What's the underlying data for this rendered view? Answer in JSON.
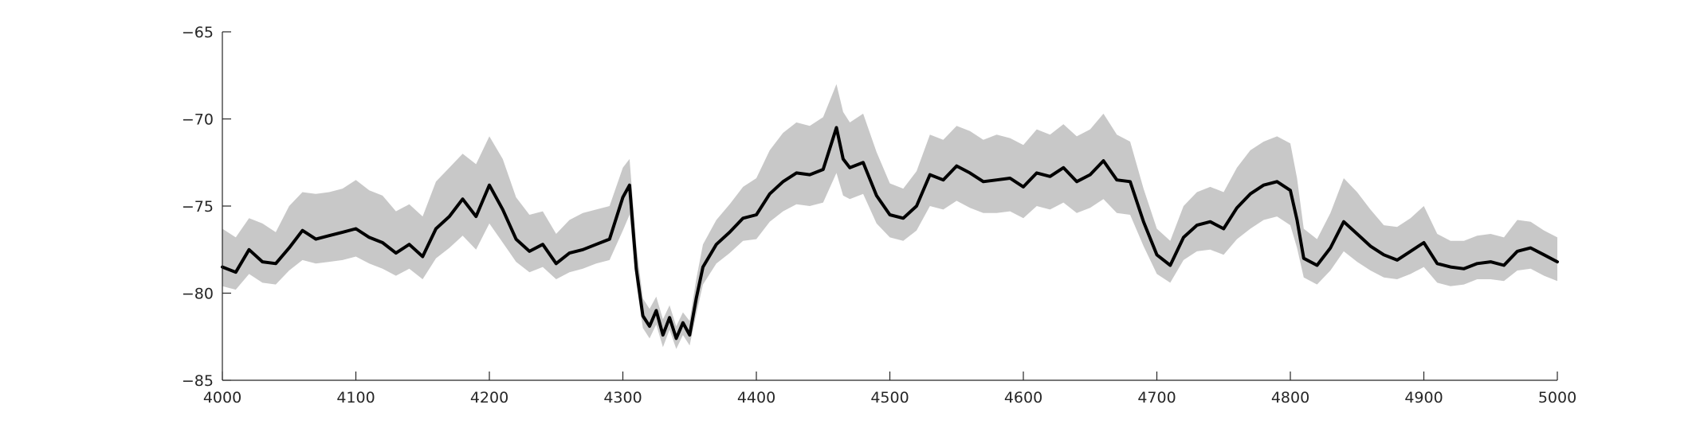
{
  "chart_data": {
    "type": "line",
    "title": "",
    "xlabel": "",
    "ylabel": "",
    "xlim": [
      4000,
      5000
    ],
    "ylim": [
      -85,
      -65
    ],
    "x_ticks": [
      4000,
      4100,
      4200,
      4300,
      4400,
      4500,
      4600,
      4700,
      4800,
      4900,
      5000
    ],
    "y_ticks": [
      -65,
      -70,
      -75,
      -80,
      -85
    ],
    "x_tick_labels": [
      "4000",
      "4100",
      "4200",
      "4300",
      "4400",
      "4500",
      "4600",
      "4700",
      "4800",
      "4900",
      "5000"
    ],
    "y_tick_labels": [
      "−65",
      "−70",
      "−75",
      "−80",
      "−85"
    ],
    "grid": false,
    "legend": "none",
    "colors": {
      "mean_line": "#000000",
      "spread_band": "#c8c8c8",
      "axis": "#262626"
    },
    "series": [
      {
        "role": "mean",
        "x": [
          4000,
          4010,
          4020,
          4030,
          4040,
          4050,
          4060,
          4070,
          4080,
          4090,
          4100,
          4110,
          4120,
          4130,
          4140,
          4150,
          4160,
          4170,
          4180,
          4190,
          4200,
          4210,
          4220,
          4230,
          4240,
          4250,
          4260,
          4270,
          4280,
          4290,
          4300,
          4305,
          4310,
          4315,
          4320,
          4325,
          4330,
          4335,
          4340,
          4345,
          4350,
          4355,
          4360,
          4370,
          4380,
          4390,
          4400,
          4410,
          4420,
          4430,
          4440,
          4450,
          4460,
          4465,
          4470,
          4480,
          4490,
          4500,
          4510,
          4520,
          4530,
          4540,
          4550,
          4560,
          4570,
          4580,
          4590,
          4600,
          4610,
          4620,
          4630,
          4640,
          4650,
          4660,
          4670,
          4680,
          4690,
          4700,
          4710,
          4720,
          4730,
          4740,
          4750,
          4760,
          4770,
          4780,
          4790,
          4800,
          4805,
          4810,
          4820,
          4830,
          4840,
          4850,
          4860,
          4870,
          4880,
          4890,
          4900,
          4910,
          4920,
          4930,
          4940,
          4950,
          4960,
          4970,
          4980,
          4990,
          5000
        ],
        "y": [
          -78.5,
          -78.8,
          -77.5,
          -78.2,
          -78.3,
          -77.4,
          -76.4,
          -76.9,
          -76.7,
          -76.5,
          -76.3,
          -76.8,
          -77.1,
          -77.7,
          -77.2,
          -77.9,
          -76.3,
          -75.6,
          -74.6,
          -75.6,
          -73.8,
          -75.2,
          -76.9,
          -77.6,
          -77.2,
          -78.3,
          -77.7,
          -77.5,
          -77.2,
          -76.9,
          -74.5,
          -73.8,
          -78.6,
          -81.3,
          -81.9,
          -81.0,
          -82.4,
          -81.4,
          -82.6,
          -81.7,
          -82.4,
          -80.3,
          -78.5,
          -77.2,
          -76.5,
          -75.7,
          -75.5,
          -74.3,
          -73.6,
          -73.1,
          -73.2,
          -72.9,
          -70.5,
          -72.3,
          -72.8,
          -72.5,
          -74.4,
          -75.5,
          -75.7,
          -75.0,
          -73.2,
          -73.5,
          -72.7,
          -73.1,
          -73.6,
          -73.5,
          -73.4,
          -73.9,
          -73.1,
          -73.3,
          -72.8,
          -73.6,
          -73.2,
          -72.4,
          -73.5,
          -73.6,
          -75.9,
          -77.8,
          -78.4,
          -76.8,
          -76.1,
          -75.9,
          -76.3,
          -75.1,
          -74.3,
          -73.8,
          -73.6,
          -74.1,
          -75.8,
          -78.0,
          -78.4,
          -77.4,
          -75.9,
          -76.6,
          -77.3,
          -77.8,
          -78.1,
          -77.6,
          -77.1,
          -78.3,
          -78.5,
          -78.6,
          -78.3,
          -78.2,
          -78.4,
          -77.6,
          -77.4,
          -77.8,
          -78.2
        ]
      },
      {
        "role": "band_upper",
        "x": [
          4000,
          4010,
          4020,
          4030,
          4040,
          4050,
          4060,
          4070,
          4080,
          4090,
          4100,
          4110,
          4120,
          4130,
          4140,
          4150,
          4160,
          4170,
          4180,
          4190,
          4200,
          4210,
          4220,
          4230,
          4240,
          4250,
          4260,
          4270,
          4280,
          4290,
          4300,
          4305,
          4310,
          4315,
          4320,
          4325,
          4330,
          4335,
          4340,
          4345,
          4350,
          4355,
          4360,
          4370,
          4380,
          4390,
          4400,
          4410,
          4420,
          4430,
          4440,
          4450,
          4460,
          4465,
          4470,
          4480,
          4490,
          4500,
          4510,
          4520,
          4530,
          4540,
          4550,
          4560,
          4570,
          4580,
          4590,
          4600,
          4610,
          4620,
          4630,
          4640,
          4650,
          4660,
          4670,
          4680,
          4690,
          4700,
          4710,
          4720,
          4730,
          4740,
          4750,
          4760,
          4770,
          4780,
          4790,
          4800,
          4805,
          4810,
          4820,
          4830,
          4840,
          4850,
          4860,
          4870,
          4880,
          4890,
          4900,
          4910,
          4920,
          4930,
          4940,
          4950,
          4960,
          4970,
          4980,
          4990,
          5000
        ],
        "y": [
          -76.3,
          -76.8,
          -75.7,
          -76.0,
          -76.5,
          -75.0,
          -74.2,
          -74.3,
          -74.2,
          -74.0,
          -73.5,
          -74.1,
          -74.4,
          -75.3,
          -74.9,
          -75.6,
          -73.6,
          -72.8,
          -72.0,
          -72.6,
          -71.0,
          -72.3,
          -74.5,
          -75.5,
          -75.3,
          -76.6,
          -75.8,
          -75.4,
          -75.2,
          -75.0,
          -72.8,
          -72.3,
          -77.2,
          -80.3,
          -80.9,
          -80.2,
          -81.5,
          -80.7,
          -81.9,
          -81.1,
          -81.6,
          -79.2,
          -77.2,
          -75.8,
          -74.9,
          -73.9,
          -73.4,
          -71.8,
          -70.8,
          -70.2,
          -70.4,
          -69.9,
          -68.0,
          -69.6,
          -70.2,
          -69.7,
          -71.9,
          -73.7,
          -74.0,
          -73.0,
          -70.9,
          -71.2,
          -70.4,
          -70.7,
          -71.2,
          -70.9,
          -71.1,
          -71.5,
          -70.6,
          -70.9,
          -70.3,
          -71.0,
          -70.6,
          -69.7,
          -70.9,
          -71.3,
          -74.0,
          -76.3,
          -77.0,
          -75.0,
          -74.2,
          -73.9,
          -74.2,
          -72.8,
          -71.8,
          -71.3,
          -71.0,
          -71.4,
          -73.4,
          -76.3,
          -76.9,
          -75.4,
          -73.4,
          -74.2,
          -75.2,
          -76.1,
          -76.2,
          -75.7,
          -75.0,
          -76.6,
          -77.0,
          -77.0,
          -76.7,
          -76.6,
          -76.8,
          -75.8,
          -75.9,
          -76.4,
          -76.8
        ]
      },
      {
        "role": "band_lower",
        "x": [
          4000,
          4010,
          4020,
          4030,
          4040,
          4050,
          4060,
          4070,
          4080,
          4090,
          4100,
          4110,
          4120,
          4130,
          4140,
          4150,
          4160,
          4170,
          4180,
          4190,
          4200,
          4210,
          4220,
          4230,
          4240,
          4250,
          4260,
          4270,
          4280,
          4290,
          4300,
          4305,
          4310,
          4315,
          4320,
          4325,
          4330,
          4335,
          4340,
          4345,
          4350,
          4355,
          4360,
          4370,
          4380,
          4390,
          4400,
          4410,
          4420,
          4430,
          4440,
          4450,
          4460,
          4465,
          4470,
          4480,
          4490,
          4500,
          4510,
          4520,
          4530,
          4540,
          4550,
          4560,
          4570,
          4580,
          4590,
          4600,
          4610,
          4620,
          4630,
          4640,
          4650,
          4660,
          4670,
          4680,
          4690,
          4700,
          4710,
          4720,
          4730,
          4740,
          4750,
          4760,
          4770,
          4780,
          4790,
          4800,
          4805,
          4810,
          4820,
          4830,
          4840,
          4850,
          4860,
          4870,
          4880,
          4890,
          4900,
          4910,
          4920,
          4930,
          4940,
          4950,
          4960,
          4970,
          4980,
          4990,
          5000
        ],
        "y": [
          -79.6,
          -79.8,
          -78.9,
          -79.4,
          -79.5,
          -78.7,
          -78.1,
          -78.3,
          -78.2,
          -78.1,
          -77.9,
          -78.3,
          -78.6,
          -79.0,
          -78.6,
          -79.2,
          -78.0,
          -77.4,
          -76.7,
          -77.5,
          -76.0,
          -77.1,
          -78.2,
          -78.8,
          -78.5,
          -79.2,
          -78.8,
          -78.6,
          -78.3,
          -78.1,
          -76.4,
          -75.5,
          -79.4,
          -82.0,
          -82.6,
          -81.8,
          -83.1,
          -82.1,
          -83.2,
          -82.4,
          -83.0,
          -81.2,
          -79.5,
          -78.3,
          -77.7,
          -77.0,
          -76.9,
          -75.9,
          -75.3,
          -74.9,
          -75.0,
          -74.8,
          -73.1,
          -74.4,
          -74.6,
          -74.3,
          -76.0,
          -76.8,
          -77.0,
          -76.4,
          -75.0,
          -75.2,
          -74.7,
          -75.1,
          -75.4,
          -75.4,
          -75.3,
          -75.7,
          -75.0,
          -75.2,
          -74.8,
          -75.4,
          -75.1,
          -74.6,
          -75.4,
          -75.5,
          -77.3,
          -78.9,
          -79.4,
          -78.1,
          -77.6,
          -77.5,
          -77.8,
          -76.9,
          -76.3,
          -75.8,
          -75.6,
          -76.1,
          -77.4,
          -79.1,
          -79.5,
          -78.7,
          -77.6,
          -78.2,
          -78.7,
          -79.1,
          -79.2,
          -78.9,
          -78.5,
          -79.4,
          -79.6,
          -79.5,
          -79.2,
          -79.2,
          -79.3,
          -78.7,
          -78.6,
          -79.0,
          -79.3
        ]
      }
    ]
  }
}
